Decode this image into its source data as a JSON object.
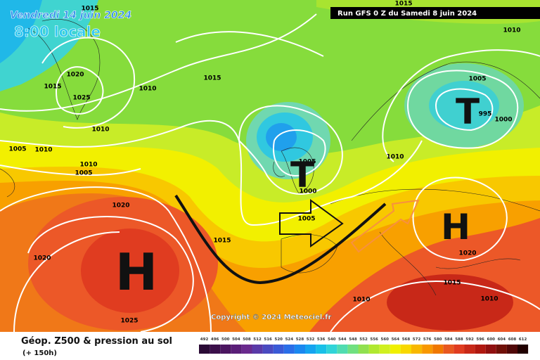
{
  "header": {
    "date": "Vendredi 14 juin 2024",
    "time": "8:00 locale",
    "run": "Run GFS 0 Z du Samedi 8 juin 2024"
  },
  "map": {
    "highs": [
      "H",
      "H"
    ],
    "lows": [
      "T",
      "T"
    ],
    "pressure_labels": [
      "1015",
      "1020",
      "1015",
      "1025",
      "1010",
      "1015",
      "1010",
      "1005",
      "1010",
      "1010",
      "1005",
      "1020",
      "1020",
      "1025",
      "1015",
      "1005",
      "1000",
      "1005",
      "1010",
      "1005",
      "995",
      "1000",
      "1010",
      "1015",
      "1020",
      "1015",
      "1010",
      "1010"
    ],
    "copyright": "Copyright © 2024 Meteociel.fr"
  },
  "footer": {
    "title": "Géop. Z500 & pression au sol",
    "subtitle": "(+ 150h)"
  },
  "scale": {
    "labels": [
      492,
      496,
      500,
      504,
      508,
      512,
      516,
      520,
      524,
      528,
      532,
      536,
      540,
      544,
      548,
      552,
      556,
      560,
      564,
      568,
      572,
      576,
      580,
      584,
      588,
      592,
      596,
      600,
      604,
      608,
      612
    ],
    "colors": [
      "#2a0a35",
      "#3b0f4a",
      "#4b1560",
      "#5a1e78",
      "#6a2a8e",
      "#5a3aa8",
      "#4a4ac0",
      "#3a5ad6",
      "#2a6ee8",
      "#1a88f0",
      "#14a4f0",
      "#18c0e8",
      "#30d4d8",
      "#50dcb0",
      "#70e080",
      "#90e050",
      "#b0e830",
      "#d0f020",
      "#f0f000",
      "#f8d800",
      "#f8b800",
      "#f89800",
      "#f07800",
      "#e85820",
      "#e03c20",
      "#c82818",
      "#b01810",
      "#901010",
      "#701008",
      "#500808",
      "#200000"
    ]
  }
}
